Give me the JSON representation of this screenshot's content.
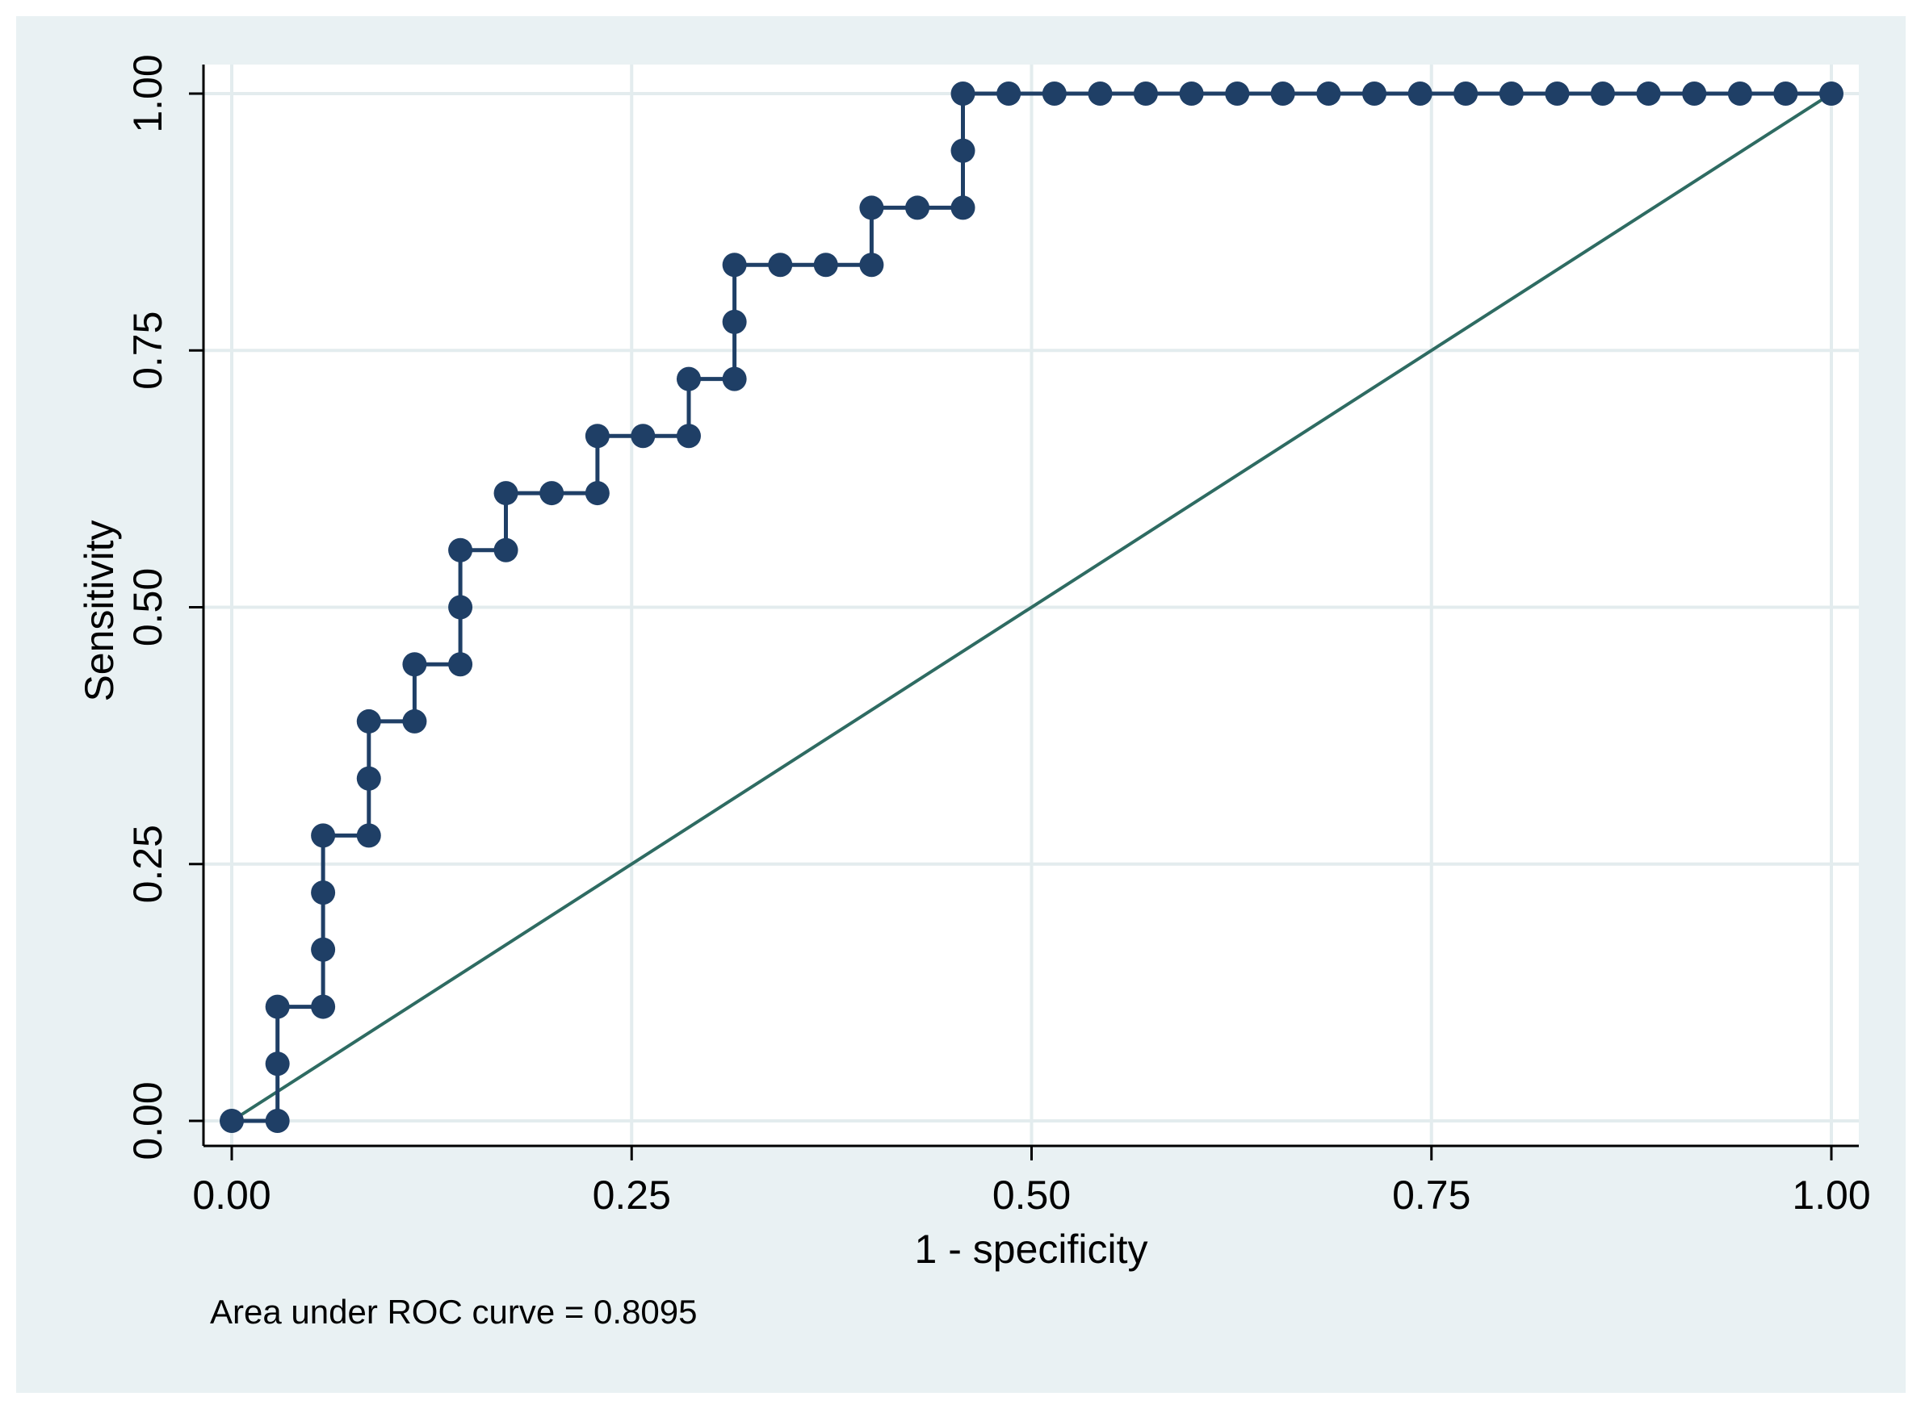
{
  "chart_data": {
    "type": "line",
    "title": "",
    "xlabel": "1 - specificity",
    "ylabel": "Sensitivity",
    "xlim": [
      0,
      1
    ],
    "ylim": [
      0,
      1
    ],
    "x_ticks": [
      "0.00",
      "0.25",
      "0.50",
      "0.75",
      "1.00"
    ],
    "y_ticks": [
      "0.00",
      "0.25",
      "0.50",
      "0.75",
      "1.00"
    ],
    "grid": true,
    "legend": "none",
    "note": "Area under ROC curve = 0.8095",
    "series": [
      {
        "style": "step-markers",
        "color": "#1f3f66",
        "points": [
          [
            0.0,
            0.0
          ],
          [
            0.0286,
            0.0
          ],
          [
            0.0286,
            0.0556
          ],
          [
            0.0286,
            0.1111
          ],
          [
            0.0571,
            0.1111
          ],
          [
            0.0571,
            0.1667
          ],
          [
            0.0571,
            0.2222
          ],
          [
            0.0571,
            0.2778
          ],
          [
            0.0857,
            0.2778
          ],
          [
            0.0857,
            0.3333
          ],
          [
            0.0857,
            0.3889
          ],
          [
            0.1143,
            0.3889
          ],
          [
            0.1143,
            0.4444
          ],
          [
            0.1429,
            0.4444
          ],
          [
            0.1429,
            0.5
          ],
          [
            0.1429,
            0.5556
          ],
          [
            0.1714,
            0.5556
          ],
          [
            0.1714,
            0.6111
          ],
          [
            0.2,
            0.6111
          ],
          [
            0.2286,
            0.6111
          ],
          [
            0.2286,
            0.6667
          ],
          [
            0.2571,
            0.6667
          ],
          [
            0.2857,
            0.6667
          ],
          [
            0.2857,
            0.7222
          ],
          [
            0.3143,
            0.7222
          ],
          [
            0.3143,
            0.7778
          ],
          [
            0.3143,
            0.8333
          ],
          [
            0.3429,
            0.8333
          ],
          [
            0.3714,
            0.8333
          ],
          [
            0.4,
            0.8333
          ],
          [
            0.4,
            0.8889
          ],
          [
            0.4286,
            0.8889
          ],
          [
            0.4571,
            0.8889
          ],
          [
            0.4571,
            0.9444
          ],
          [
            0.4571,
            1.0
          ],
          [
            0.4857,
            1.0
          ],
          [
            0.5143,
            1.0
          ],
          [
            0.5429,
            1.0
          ],
          [
            0.5714,
            1.0
          ],
          [
            0.6,
            1.0
          ],
          [
            0.6286,
            1.0
          ],
          [
            0.6571,
            1.0
          ],
          [
            0.6857,
            1.0
          ],
          [
            0.7143,
            1.0
          ],
          [
            0.7429,
            1.0
          ],
          [
            0.7714,
            1.0
          ],
          [
            0.8,
            1.0
          ],
          [
            0.8286,
            1.0
          ],
          [
            0.8571,
            1.0
          ],
          [
            0.8857,
            1.0
          ],
          [
            0.9143,
            1.0
          ],
          [
            0.9429,
            1.0
          ],
          [
            0.9714,
            1.0
          ],
          [
            1.0,
            1.0
          ]
        ]
      },
      {
        "style": "reference-line",
        "color": "#2e6b62",
        "points": [
          [
            0,
            0
          ],
          [
            1,
            1
          ]
        ]
      }
    ]
  },
  "colors": {
    "outer_background": "#e9f1f3",
    "plot_background": "#ffffff",
    "grid": "#e3ecee"
  }
}
